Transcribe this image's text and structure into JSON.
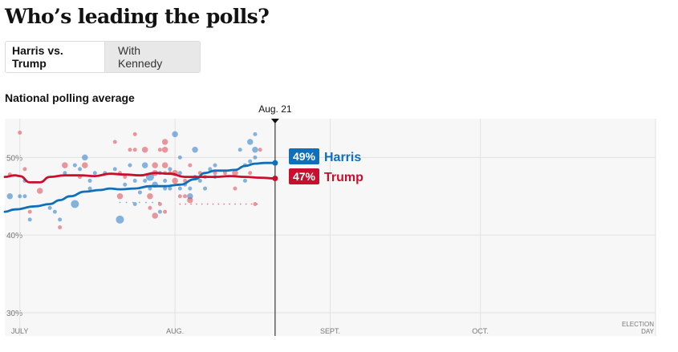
{
  "header": {
    "title": "Who’s leading the polls?",
    "tabs": [
      {
        "label": "Harris vs. Trump",
        "active": true
      },
      {
        "label": "With Kennedy",
        "active": false
      }
    ],
    "subtitle": "National polling average"
  },
  "chart_data": {
    "type": "line",
    "title": "National polling average",
    "ylabel": "",
    "xlabel": "",
    "ylim": [
      27,
      55
    ],
    "y_ticks": [
      {
        "value": 30,
        "label": "30%"
      },
      {
        "value": 40,
        "label": "40%"
      },
      {
        "value": 50,
        "label": "50%"
      }
    ],
    "x_domain": [
      -2,
      128
    ],
    "x_ticks": [
      {
        "day": 1,
        "label": "JULY"
      },
      {
        "day": 32,
        "label": "AUG."
      },
      {
        "day": 63,
        "label": "SEPT."
      },
      {
        "day": 93,
        "label": "OCT."
      },
      {
        "day": 128,
        "label": "ELECTION DAY"
      }
    ],
    "current_date": {
      "day": 52,
      "label": "Aug. 21"
    },
    "series": [
      {
        "name": "Harris",
        "color": "#0f6fb8",
        "final_label": "49%",
        "days": [
          -2,
          0,
          4,
          7,
          9,
          11,
          14,
          17,
          19,
          21,
          24,
          27,
          30,
          33,
          36,
          38,
          40,
          42,
          44,
          46,
          48,
          50,
          52
        ],
        "values": [
          43,
          43.3,
          43.7,
          44,
          44.5,
          45,
          45.6,
          45.8,
          46,
          45.9,
          46,
          46.3,
          46.3,
          46.5,
          47.2,
          48,
          48.3,
          48.3,
          48.4,
          48.9,
          49.2,
          49.3,
          49.3
        ]
      },
      {
        "name": "Trump",
        "color": "#c8102e",
        "final_label": "47%",
        "days": [
          -2,
          0,
          1,
          3,
          5,
          7,
          10,
          13,
          16,
          19,
          22,
          25,
          28,
          31,
          34,
          37,
          40,
          43,
          46,
          49,
          52
        ],
        "values": [
          47.5,
          47.7,
          47.6,
          46.8,
          46.8,
          47.5,
          47.7,
          47.7,
          47.6,
          47.9,
          47.8,
          47.7,
          48,
          47.9,
          47.5,
          47.5,
          47.5,
          47.6,
          47.5,
          47.4,
          47.3
        ]
      }
    ],
    "polls": [
      {
        "c": "r",
        "d": 1,
        "v": 53.2,
        "s": 2
      },
      {
        "c": "r",
        "d": -1,
        "v": 47.8,
        "s": 2
      },
      {
        "c": "b",
        "d": -1,
        "v": 45,
        "s": 3
      },
      {
        "c": "b",
        "d": 1,
        "v": 45,
        "s": 2
      },
      {
        "c": "b",
        "d": 2,
        "v": 45,
        "s": 2
      },
      {
        "c": "b",
        "d": 2,
        "v": 47,
        "s": 2
      },
      {
        "c": "r",
        "d": 2,
        "v": 48.5,
        "s": 2
      },
      {
        "c": "r",
        "d": 3,
        "v": 43,
        "s": 2
      },
      {
        "c": "b",
        "d": 3,
        "v": 42,
        "s": 2
      },
      {
        "c": "r",
        "d": 5,
        "v": 45.7,
        "s": 3
      },
      {
        "c": "b",
        "d": 7,
        "v": 43.5,
        "s": 2
      },
      {
        "c": "b",
        "d": 8,
        "v": 43,
        "s": 2
      },
      {
        "c": "r",
        "d": 9,
        "v": 41,
        "s": 2
      },
      {
        "c": "b",
        "d": 9,
        "v": 42,
        "s": 2
      },
      {
        "c": "r",
        "d": 10,
        "v": 49,
        "s": 3
      },
      {
        "c": "b",
        "d": 10,
        "v": 48,
        "s": 2
      },
      {
        "c": "b",
        "d": 12,
        "v": 44,
        "s": 4
      },
      {
        "c": "b",
        "d": 12,
        "v": 49,
        "s": 2
      },
      {
        "c": "b",
        "d": 13,
        "v": 48.5,
        "s": 2
      },
      {
        "c": "r",
        "d": 13,
        "v": 47.5,
        "s": 2
      },
      {
        "c": "b",
        "d": 14,
        "v": 50,
        "s": 3
      },
      {
        "c": "r",
        "d": 14,
        "v": 49,
        "s": 3
      },
      {
        "c": "b",
        "d": 15,
        "v": 47,
        "s": 2
      },
      {
        "c": "b",
        "d": 15,
        "v": 46,
        "s": 2
      },
      {
        "c": "b",
        "d": 16,
        "v": 48,
        "s": 2
      },
      {
        "c": "b",
        "d": 18,
        "v": 48,
        "s": 2
      },
      {
        "c": "b",
        "d": 20,
        "v": 48.5,
        "s": 2
      },
      {
        "c": "r",
        "d": 20,
        "v": 52,
        "s": 2
      },
      {
        "c": "r",
        "d": 21,
        "v": 48,
        "s": 2
      },
      {
        "c": "b",
        "d": 21,
        "v": 42,
        "s": 4
      },
      {
        "c": "r",
        "d": 21,
        "v": 45,
        "s": 3
      },
      {
        "c": "r",
        "d": 22,
        "v": 47.5,
        "s": 2
      },
      {
        "c": "b",
        "d": 22,
        "v": 46.5,
        "s": 2
      },
      {
        "c": "r",
        "d": 23,
        "v": 51,
        "s": 2
      },
      {
        "c": "b",
        "d": 23,
        "v": 49,
        "s": 2
      },
      {
        "c": "r",
        "d": 24,
        "v": 53,
        "s": 2
      },
      {
        "c": "r",
        "d": 24,
        "v": 51,
        "s": 2
      },
      {
        "c": "b",
        "d": 24,
        "v": 44,
        "s": 2
      },
      {
        "c": "b",
        "d": 24,
        "v": 47,
        "s": 2
      },
      {
        "c": "b",
        "d": 25,
        "v": 45.5,
        "s": 2
      },
      {
        "c": "r",
        "d": 26,
        "v": 51,
        "s": 3
      },
      {
        "c": "b",
        "d": 26,
        "v": 49,
        "s": 3
      },
      {
        "c": "b",
        "d": 26,
        "v": 47,
        "s": 2
      },
      {
        "c": "r",
        "d": 27,
        "v": 45,
        "s": 3
      },
      {
        "c": "b",
        "d": 27,
        "v": 46,
        "s": 2
      },
      {
        "c": "r",
        "d": 27,
        "v": 43.5,
        "s": 2
      },
      {
        "c": "b",
        "d": 27,
        "v": 47.5,
        "s": 4
      },
      {
        "c": "r",
        "d": 28,
        "v": 48,
        "s": 3
      },
      {
        "c": "b",
        "d": 28,
        "v": 46.5,
        "s": 3
      },
      {
        "c": "r",
        "d": 28,
        "v": 49,
        "s": 3
      },
      {
        "c": "r",
        "d": 28,
        "v": 42.5,
        "s": 3
      },
      {
        "c": "r",
        "d": 29,
        "v": 44,
        "s": 2
      },
      {
        "c": "b",
        "d": 29,
        "v": 48,
        "s": 2
      },
      {
        "c": "b",
        "d": 29,
        "v": 43,
        "s": 2
      },
      {
        "c": "r",
        "d": 29,
        "v": 51,
        "s": 2
      },
      {
        "c": "r",
        "d": 30,
        "v": 52,
        "s": 3
      },
      {
        "c": "r",
        "d": 30,
        "v": 51,
        "s": 3
      },
      {
        "c": "r",
        "d": 30,
        "v": 49,
        "s": 3
      },
      {
        "c": "r",
        "d": 30,
        "v": 48,
        "s": 2
      },
      {
        "c": "b",
        "d": 30,
        "v": 46,
        "s": 2
      },
      {
        "c": "b",
        "d": 30,
        "v": 47,
        "s": 2
      },
      {
        "c": "r",
        "d": 30,
        "v": 43,
        "s": 2
      },
      {
        "c": "b",
        "d": 31,
        "v": 48.5,
        "s": 2
      },
      {
        "c": "r",
        "d": 31,
        "v": 48,
        "s": 2
      },
      {
        "c": "b",
        "d": 31,
        "v": 46,
        "s": 2
      },
      {
        "c": "b",
        "d": 32,
        "v": 53,
        "s": 3
      },
      {
        "c": "r",
        "d": 32,
        "v": 48,
        "s": 3
      },
      {
        "c": "r",
        "d": 32,
        "v": 47,
        "s": 3
      },
      {
        "c": "b",
        "d": 33,
        "v": 50,
        "s": 2
      },
      {
        "c": "b",
        "d": 33,
        "v": 48,
        "s": 2
      },
      {
        "c": "b",
        "d": 33,
        "v": 46,
        "s": 2
      },
      {
        "c": "r",
        "d": 33,
        "v": 45,
        "s": 2
      },
      {
        "c": "r",
        "d": 34,
        "v": 47,
        "s": 2
      },
      {
        "c": "r",
        "d": 34,
        "v": 45,
        "s": 2
      },
      {
        "c": "b",
        "d": 34,
        "v": 46.5,
        "s": 2
      },
      {
        "c": "r",
        "d": 35,
        "v": 49,
        "s": 2
      },
      {
        "c": "b",
        "d": 35,
        "v": 46,
        "s": 2
      },
      {
        "c": "b",
        "d": 35,
        "v": 45,
        "s": 3
      },
      {
        "c": "r",
        "d": 35,
        "v": 44.5,
        "s": 3
      },
      {
        "c": "b",
        "d": 36,
        "v": 51,
        "s": 3
      },
      {
        "c": "b",
        "d": 36,
        "v": 47.5,
        "s": 2
      },
      {
        "c": "r",
        "d": 37,
        "v": 48,
        "s": 2
      },
      {
        "c": "b",
        "d": 37,
        "v": 47,
        "s": 2
      },
      {
        "c": "r",
        "d": 38,
        "v": 47.5,
        "s": 2
      },
      {
        "c": "b",
        "d": 38,
        "v": 46,
        "s": 2
      },
      {
        "c": "b",
        "d": 39,
        "v": 48.5,
        "s": 2
      },
      {
        "c": "b",
        "d": 40,
        "v": 49,
        "s": 2
      },
      {
        "c": "r",
        "d": 40,
        "v": 48,
        "s": 2
      },
      {
        "c": "b",
        "d": 40,
        "v": 47.5,
        "s": 2
      },
      {
        "c": "r",
        "d": 42,
        "v": 48,
        "s": 2
      },
      {
        "c": "r",
        "d": 44,
        "v": 48,
        "s": 3
      },
      {
        "c": "r",
        "d": 44,
        "v": 46,
        "s": 2
      },
      {
        "c": "b",
        "d": 45,
        "v": 51,
        "s": 2
      },
      {
        "c": "b",
        "d": 46,
        "v": 49,
        "s": 2
      },
      {
        "c": "b",
        "d": 46,
        "v": 47,
        "s": 2
      },
      {
        "c": "b",
        "d": 47,
        "v": 49.5,
        "s": 2
      },
      {
        "c": "r",
        "d": 47,
        "v": 48,
        "s": 2
      },
      {
        "c": "b",
        "d": 47,
        "v": 52,
        "s": 3
      },
      {
        "c": "b",
        "d": 48,
        "v": 53,
        "s": 2
      },
      {
        "c": "b",
        "d": 48,
        "v": 50,
        "s": 2
      },
      {
        "c": "r",
        "d": 48,
        "v": 44,
        "s": 2
      },
      {
        "c": "b",
        "d": 48,
        "v": 51,
        "s": 3
      },
      {
        "c": "r",
        "d": 49,
        "v": 51,
        "s": 2
      }
    ]
  }
}
